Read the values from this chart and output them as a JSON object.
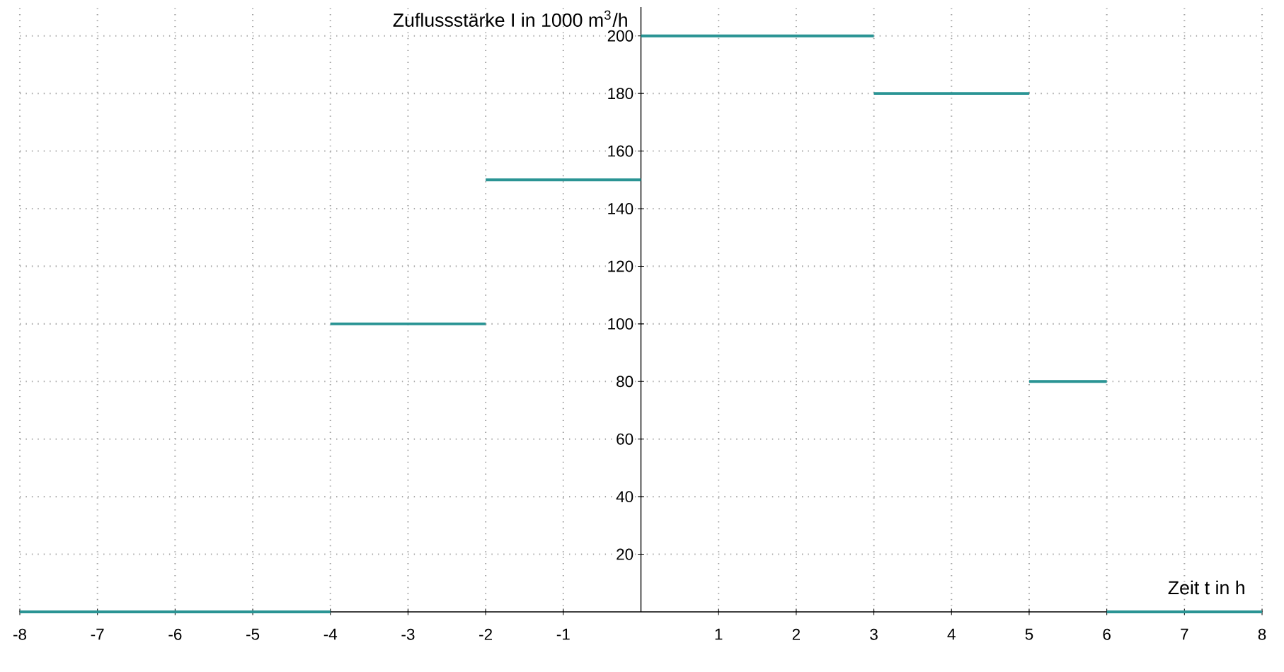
{
  "chart_data": {
    "type": "line",
    "xlabel": "Zeit t in h",
    "ylabel": "Zuflussstärke I in 1000 m$^{3}$/h",
    "xlim": [
      -8,
      8
    ],
    "ylim": [
      0,
      210
    ],
    "xticks": [
      -8,
      -7,
      -6,
      -5,
      -4,
      -3,
      -2,
      -1,
      1,
      2,
      3,
      4,
      5,
      6,
      7,
      8
    ],
    "yticks": [
      20,
      40,
      60,
      80,
      100,
      120,
      140,
      160,
      180,
      200
    ],
    "grid": true,
    "marker": "none",
    "line_style": "solid",
    "series": [
      {
        "color": "#2a9494",
        "x": [
          -8,
          -4
        ],
        "values": [
          0,
          0
        ]
      },
      {
        "color": "#2a9494",
        "x": [
          -4,
          -2
        ],
        "values": [
          100,
          100
        ]
      },
      {
        "color": "#2a9494",
        "x": [
          -2,
          0
        ],
        "values": [
          150,
          150
        ]
      },
      {
        "color": "#2a9494",
        "x": [
          0,
          3
        ],
        "values": [
          200,
          200
        ]
      },
      {
        "color": "#2a9494",
        "x": [
          3,
          5
        ],
        "values": [
          180,
          180
        ]
      },
      {
        "color": "#2a9494",
        "x": [
          5,
          6
        ],
        "values": [
          80,
          80
        ]
      },
      {
        "color": "#2a9494",
        "x": [
          6,
          8
        ],
        "values": [
          0,
          0
        ]
      }
    ]
  }
}
